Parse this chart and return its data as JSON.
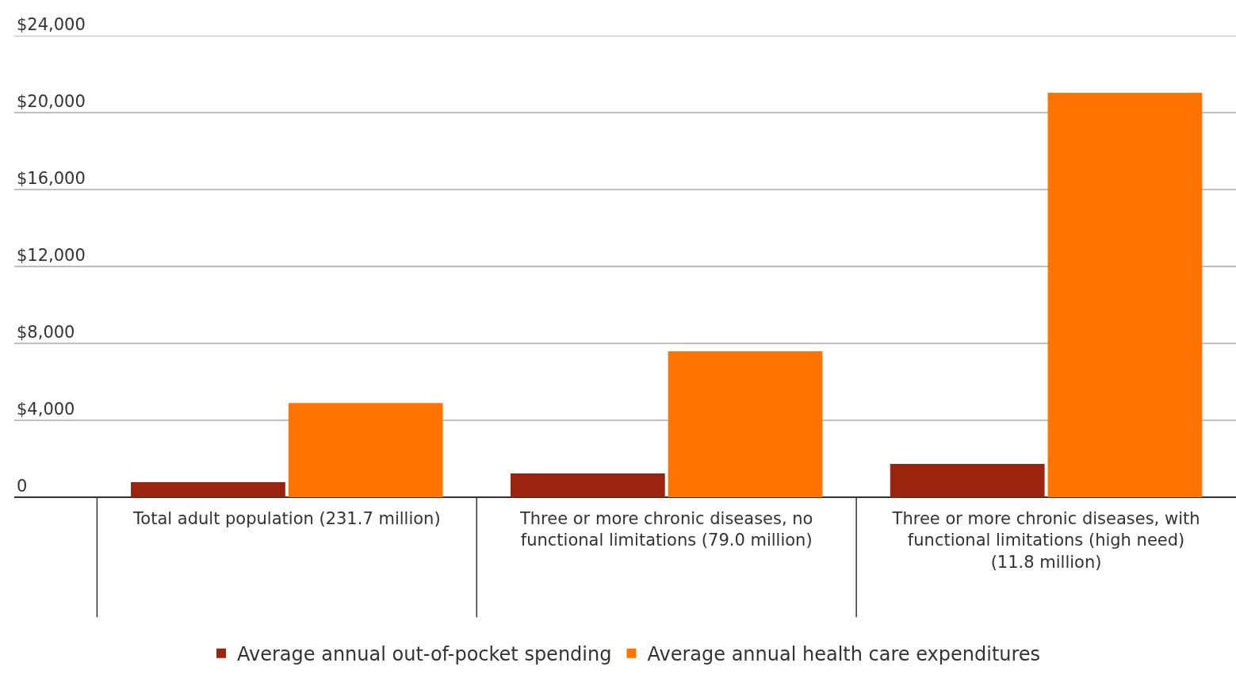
{
  "chart_data": {
    "type": "bar",
    "categories": [
      "Total adult population (231.7 million)",
      "Three or more chronic diseases, no functional limitations (79.0 million)",
      "Three or more chronic diseases, with functional limitations (high need) (11.8 million)"
    ],
    "series": [
      {
        "name": "Average annual out-of-pocket spending",
        "color": "#9a240e",
        "values": [
          780,
          1240,
          1730
        ]
      },
      {
        "name": "Average annual health care expenditures",
        "color": "#ff7300",
        "values": [
          4900,
          7590,
          21030
        ]
      }
    ],
    "ylim": [
      0,
      24000
    ],
    "yticks": [
      {
        "value": 0,
        "label": "0"
      },
      {
        "value": 4000,
        "label": "$4,000"
      },
      {
        "value": 8000,
        "label": "$8,000"
      },
      {
        "value": 12000,
        "label": "$12,000"
      },
      {
        "value": 16000,
        "label": "$16,000"
      },
      {
        "value": 20000,
        "label": "$20,000"
      },
      {
        "value": 24000,
        "label": "$24,000"
      }
    ],
    "grid": "y",
    "legend": "bottom"
  }
}
